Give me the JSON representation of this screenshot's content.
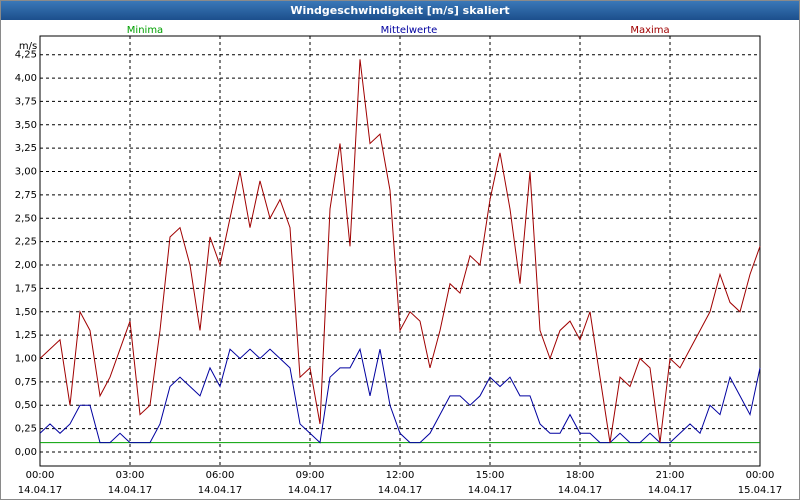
{
  "chart_data": {
    "type": "line",
    "title": "Windgeschwindigkeit [m/s] skaliert",
    "y_label": "m/s",
    "x": [
      0,
      20,
      40,
      60,
      80,
      100,
      120,
      140,
      160,
      180,
      200,
      220,
      240,
      260,
      280,
      300,
      320,
      340,
      360,
      380,
      400,
      420,
      440,
      460,
      480,
      500,
      520,
      540,
      560,
      580,
      600,
      620,
      640,
      660,
      680,
      700,
      720,
      740,
      760,
      780,
      800,
      820,
      840,
      860,
      880,
      900,
      920,
      940,
      960,
      980,
      1000,
      1020,
      1040,
      1060,
      1080,
      1100,
      1120,
      1140,
      1160,
      1180,
      1200,
      1220,
      1240,
      1260,
      1280,
      1300,
      1320,
      1340,
      1360,
      1380,
      1400,
      1420,
      1440
    ],
    "series": [
      {
        "name": "Minima",
        "color": "#00a000",
        "values": [
          0.1,
          0.1,
          0.1,
          0.1,
          0.1,
          0.1,
          0.1,
          0.1,
          0.1,
          0.1,
          0.1,
          0.1,
          0.1,
          0.1,
          0.1,
          0.1,
          0.1,
          0.1,
          0.1,
          0.1,
          0.1,
          0.1,
          0.1,
          0.1,
          0.1,
          0.1,
          0.1,
          0.1,
          0.1,
          0.1,
          0.1,
          0.1,
          0.1,
          0.1,
          0.1,
          0.1,
          0.1,
          0.1,
          0.1,
          0.1,
          0.1,
          0.1,
          0.1,
          0.1,
          0.1,
          0.1,
          0.1,
          0.1,
          0.1,
          0.1,
          0.1,
          0.1,
          0.1,
          0.1,
          0.1,
          0.1,
          0.1,
          0.1,
          0.1,
          0.1,
          0.1,
          0.1,
          0.1,
          0.1,
          0.1,
          0.1,
          0.1,
          0.1,
          0.1,
          0.1,
          0.1,
          0.1,
          0.1
        ]
      },
      {
        "name": "Mittelwerte",
        "color": "#0000a0",
        "values": [
          0.2,
          0.3,
          0.2,
          0.3,
          0.5,
          0.5,
          0.1,
          0.1,
          0.2,
          0.1,
          0.1,
          0.1,
          0.3,
          0.7,
          0.8,
          0.7,
          0.6,
          0.9,
          0.7,
          1.1,
          1.0,
          1.1,
          1.0,
          1.1,
          1.0,
          0.9,
          0.3,
          0.2,
          0.1,
          0.8,
          0.9,
          0.9,
          1.1,
          0.6,
          1.1,
          0.5,
          0.2,
          0.1,
          0.1,
          0.2,
          0.4,
          0.6,
          0.6,
          0.5,
          0.6,
          0.8,
          0.7,
          0.8,
          0.6,
          0.6,
          0.3,
          0.2,
          0.2,
          0.4,
          0.2,
          0.2,
          0.1,
          0.1,
          0.2,
          0.1,
          0.1,
          0.2,
          0.1,
          0.1,
          0.2,
          0.3,
          0.2,
          0.5,
          0.4,
          0.8,
          0.6,
          0.4,
          0.9
        ]
      },
      {
        "name": "Maxima",
        "color": "#a00000",
        "values": [
          1.0,
          1.1,
          1.2,
          0.5,
          1.5,
          1.3,
          0.6,
          0.8,
          1.1,
          1.4,
          0.4,
          0.5,
          1.3,
          2.3,
          2.4,
          2.0,
          1.3,
          2.3,
          2.0,
          2.5,
          3.0,
          2.4,
          2.9,
          2.5,
          2.7,
          2.4,
          0.8,
          0.9,
          0.3,
          2.6,
          3.3,
          2.2,
          4.2,
          3.3,
          3.4,
          2.8,
          1.3,
          1.5,
          1.4,
          0.9,
          1.3,
          1.8,
          1.7,
          2.1,
          2.0,
          2.7,
          3.2,
          2.6,
          1.8,
          3.0,
          1.3,
          1.0,
          1.3,
          1.4,
          1.2,
          1.5,
          0.8,
          0.1,
          0.8,
          0.7,
          1.0,
          0.9,
          0.1,
          1.0,
          0.9,
          1.1,
          1.3,
          1.5,
          1.9,
          1.6,
          1.5,
          1.9,
          2.2
        ]
      }
    ],
    "xlim": [
      0,
      1440
    ],
    "xticks": [
      {
        "value": 0,
        "label": "00:00",
        "date": "14.04.17"
      },
      {
        "value": 180,
        "label": "03:00",
        "date": "14.04.17"
      },
      {
        "value": 360,
        "label": "06:00",
        "date": "14.04.17"
      },
      {
        "value": 540,
        "label": "09:00",
        "date": "14.04.17"
      },
      {
        "value": 720,
        "label": "12:00",
        "date": "14.04.17"
      },
      {
        "value": 900,
        "label": "15:00",
        "date": "14.04.17"
      },
      {
        "value": 1080,
        "label": "18:00",
        "date": "14.04.17"
      },
      {
        "value": 1260,
        "label": "21:00",
        "date": "14.04.17"
      },
      {
        "value": 1440,
        "label": "00:00",
        "date": "15.04.17"
      }
    ],
    "ylim": [
      -0.15,
      4.45
    ],
    "yticks": [
      {
        "value": 0,
        "label": "0,00"
      },
      {
        "value": 0.25,
        "label": "0,25"
      },
      {
        "value": 0.5,
        "label": "0,50"
      },
      {
        "value": 0.75,
        "label": "0,75"
      },
      {
        "value": 1,
        "label": "1,00"
      },
      {
        "value": 1.25,
        "label": "1,25"
      },
      {
        "value": 1.5,
        "label": "1,50"
      },
      {
        "value": 1.75,
        "label": "1,75"
      },
      {
        "value": 2,
        "label": "2,00"
      },
      {
        "value": 2.25,
        "label": "2,25"
      },
      {
        "value": 2.5,
        "label": "2,50"
      },
      {
        "value": 2.75,
        "label": "2,75"
      },
      {
        "value": 3,
        "label": "3,00"
      },
      {
        "value": 3.25,
        "label": "3,25"
      },
      {
        "value": 3.5,
        "label": "3,50"
      },
      {
        "value": 3.75,
        "label": "3,75"
      },
      {
        "value": 4,
        "label": "4,00"
      },
      {
        "value": 4.25,
        "label": "4,25"
      }
    ],
    "grid": true
  }
}
